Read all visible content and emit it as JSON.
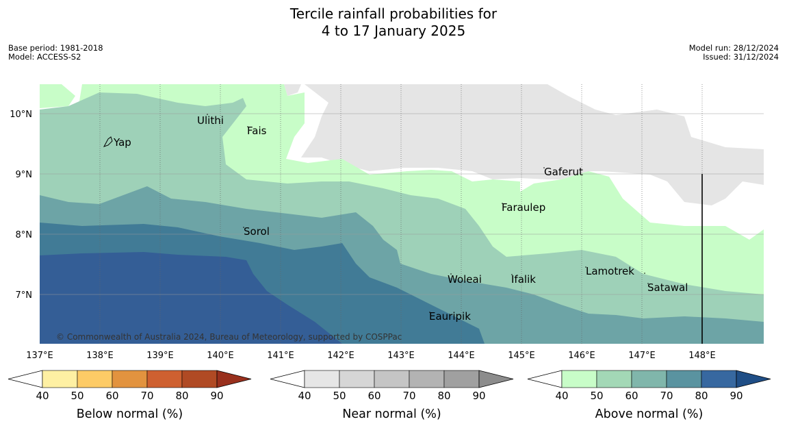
{
  "title_line1": "Tercile rainfall probabilities for",
  "title_line2": "4 to 17 January 2025",
  "meta_left": [
    "Base period: 1981-2018",
    "Model: ACCESS-S2"
  ],
  "meta_right": [
    "Model run: 28/12/2024",
    "Issued: 31/12/2024"
  ],
  "lon_labels": [
    "137°E",
    "138°E",
    "139°E",
    "140°E",
    "141°E",
    "142°E",
    "143°E",
    "144°E",
    "145°E",
    "146°E",
    "147°E",
    "148°E"
  ],
  "lat_labels": [
    "10°N",
    "9°N",
    "8°N",
    "7°N"
  ],
  "places": [
    "Yap",
    "Ulithi",
    "Fais",
    "Gaferut",
    "Faraulep",
    "Sorol",
    "Woleai",
    "Ifalik",
    "Lamotrek",
    "Satawal",
    "Eauripik"
  ],
  "copyright": "© Commonwealth of Australia 2024, Bureau of Meteorology, supported by COSPPac",
  "colorbars": [
    {
      "label": "Below normal (%)",
      "ticks": [
        "40",
        "50",
        "60",
        "70",
        "80",
        "90"
      ],
      "colors": [
        "#fef0a3",
        "#fdcb66",
        "#e2933f",
        "#ce6030",
        "#b04a24",
        "#99301d"
      ]
    },
    {
      "label": "Near normal (%)",
      "ticks": [
        "40",
        "50",
        "60",
        "70",
        "80",
        "90"
      ],
      "colors": [
        "#e6e6e6",
        "#d6d6d6",
        "#c5c5c5",
        "#b3b3b3",
        "#a0a0a0",
        "#8c8c8c"
      ]
    },
    {
      "label": "Above normal (%)",
      "ticks": [
        "40",
        "50",
        "60",
        "70",
        "80",
        "90"
      ],
      "colors": [
        "#c8fdc8",
        "#a3d8b6",
        "#80b6ab",
        "#5a93a0",
        "#3768a0",
        "#1f4e86"
      ]
    }
  ],
  "map_colors": {
    "gray": "#e5e5e5",
    "above50": "#c8fdc8",
    "above60": "#9ed1b8",
    "above70": "#6da4a6",
    "above80": "#417b96",
    "above90": "#345e96"
  }
}
